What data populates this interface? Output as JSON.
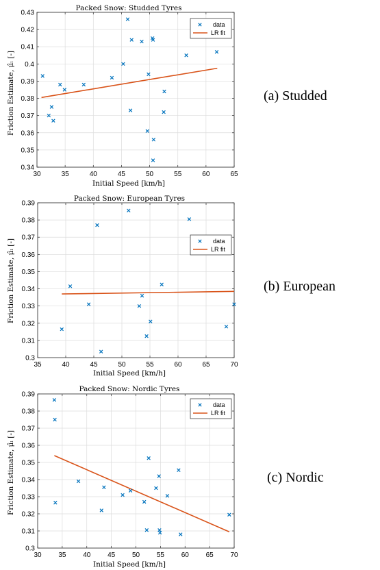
{
  "colors": {
    "data": "#0072BD",
    "fit": "#D95319",
    "grid": "#dcdcdc",
    "axis": "#262626"
  },
  "chart_data": [
    {
      "type": "scatter",
      "title": "Packed Snow: Studded Tyres",
      "xlabel": "Initial Speed [km/h]",
      "ylabel": "Friction Estimate, μ̂ₗ [-]",
      "xlim": [
        30,
        65
      ],
      "ylim": [
        0.34,
        0.43
      ],
      "xticks": [
        30,
        35,
        40,
        45,
        50,
        55,
        60,
        65
      ],
      "yticks": [
        0.34,
        0.35,
        0.36,
        0.37,
        0.38,
        0.39,
        0.4,
        0.41,
        0.42,
        0.43
      ],
      "xtick_labels": [
        "30",
        "35",
        "40",
        "45",
        "50",
        "55",
        "60",
        "65"
      ],
      "ytick_labels": [
        "0.34",
        "0.35",
        "0.36",
        "0.37",
        "0.38",
        "0.39",
        "0.4",
        "0.41",
        "0.42",
        "0.43"
      ],
      "grid": true,
      "legend_position": "top-right",
      "legend": [
        "data",
        "LR fit"
      ],
      "caption": "(a) Studded",
      "series": [
        {
          "name": "data",
          "x": [
            31,
            32.1,
            32.6,
            32.9,
            34.1,
            34.9,
            38.3,
            43.3,
            45.3,
            46.1,
            46.8,
            46.6,
            48.6,
            49.6,
            49.8,
            50.5,
            50.6,
            50.6,
            50.7,
            52.6,
            52.5,
            56.5,
            61.9
          ],
          "y": [
            0.393,
            0.37,
            0.375,
            0.367,
            0.388,
            0.385,
            0.388,
            0.392,
            0.4,
            0.426,
            0.414,
            0.373,
            0.413,
            0.361,
            0.394,
            0.415,
            0.414,
            0.344,
            0.356,
            0.384,
            0.372,
            0.405,
            0.407
          ]
        },
        {
          "name": "LR fit",
          "x": [
            30.8,
            62
          ],
          "y": [
            0.3805,
            0.3975
          ]
        }
      ]
    },
    {
      "type": "scatter",
      "title": "Packed Snow: European Tyres",
      "xlabel": "Initial Speed [km/h]",
      "ylabel": "Friction Estimate, μ̂ₗ [-]",
      "xlim": [
        35,
        70
      ],
      "ylim": [
        0.3,
        0.39
      ],
      "xticks": [
        35,
        40,
        45,
        50,
        55,
        60,
        65,
        70
      ],
      "yticks": [
        0.3,
        0.31,
        0.32,
        0.33,
        0.34,
        0.35,
        0.36,
        0.37,
        0.38,
        0.39
      ],
      "xtick_labels": [
        "35",
        "40",
        "45",
        "50",
        "55",
        "60",
        "65",
        "70"
      ],
      "ytick_labels": [
        "0.3",
        "0.31",
        "0.32",
        "0.33",
        "0.34",
        "0.35",
        "0.36",
        "0.37",
        "0.38",
        "0.39"
      ],
      "grid": true,
      "legend_position": "right",
      "legend": [
        "data",
        "LR fit"
      ],
      "caption": "(b) European",
      "series": [
        {
          "name": "data",
          "x": [
            39.3,
            40.8,
            44.1,
            45.6,
            46.3,
            51.2,
            53.1,
            53.6,
            54.4,
            55.1,
            57.1,
            62.0,
            68.6,
            70.0
          ],
          "y": [
            0.3165,
            0.3415,
            0.331,
            0.377,
            0.3035,
            0.3855,
            0.33,
            0.336,
            0.3125,
            0.321,
            0.3425,
            0.3805,
            0.318,
            0.331
          ]
        },
        {
          "name": "LR fit",
          "x": [
            39.3,
            70
          ],
          "y": [
            0.337,
            0.3385
          ]
        }
      ]
    },
    {
      "type": "scatter",
      "title": "Packed Snow: Nordic Tyres",
      "xlabel": "Initial Speed [km/h]",
      "ylabel": "Friction Estimate, μ̂ₗ [-]",
      "xlim": [
        30,
        70
      ],
      "ylim": [
        0.3,
        0.39
      ],
      "xticks": [
        30,
        35,
        40,
        45,
        50,
        55,
        60,
        65,
        70
      ],
      "yticks": [
        0.3,
        0.31,
        0.32,
        0.33,
        0.34,
        0.35,
        0.36,
        0.37,
        0.38,
        0.39
      ],
      "xtick_labels": [
        "30",
        "35",
        "40",
        "45",
        "50",
        "55",
        "60",
        "65",
        "70"
      ],
      "ytick_labels": [
        "0.3",
        "0.31",
        "0.32",
        "0.33",
        "0.34",
        "0.35",
        "0.36",
        "0.37",
        "0.38",
        "0.39"
      ],
      "grid": true,
      "legend_position": "top-right",
      "legend": [
        "data",
        "LR fit"
      ],
      "caption": "(c) Nordic",
      "series": [
        {
          "name": "data",
          "x": [
            33.4,
            33.5,
            33.6,
            38.3,
            43.0,
            43.5,
            47.3,
            48.9,
            51.7,
            52.2,
            52.6,
            54.1,
            54.7,
            54.8,
            54.9,
            56.4,
            58.7,
            59.1,
            69.0
          ],
          "y": [
            0.3865,
            0.375,
            0.3265,
            0.339,
            0.322,
            0.3355,
            0.331,
            0.3335,
            0.327,
            0.3105,
            0.3525,
            0.335,
            0.342,
            0.3105,
            0.309,
            0.3305,
            0.3455,
            0.308,
            0.3195
          ]
        },
        {
          "name": "LR fit",
          "x": [
            33.4,
            69.0
          ],
          "y": [
            0.354,
            0.3095
          ]
        }
      ]
    }
  ]
}
